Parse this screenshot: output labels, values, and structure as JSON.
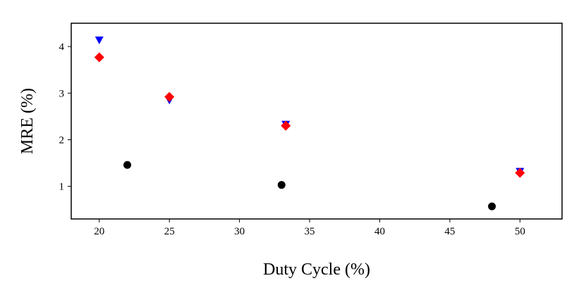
{
  "chart_data": {
    "type": "scatter",
    "x_label": "Duty Cycle (%)",
    "y_label": "MRE (%)",
    "xlim": [
      18,
      53
    ],
    "ylim": [
      0.3,
      4.5
    ],
    "xticks": [
      20,
      25,
      30,
      35,
      40,
      45,
      50
    ],
    "yticks": [
      1,
      2,
      3,
      4
    ],
    "grid": false,
    "series": [
      {
        "color": "#000000",
        "marker": "o",
        "x": [
          22,
          33,
          48
        ],
        "values": [
          1.46,
          1.03,
          0.57
        ]
      },
      {
        "color": "#0000ff",
        "marker": "v",
        "x": [
          20,
          25,
          33.3,
          50
        ],
        "values": [
          4.14,
          2.85,
          2.33,
          1.32
        ]
      },
      {
        "color": "#ff0000",
        "marker": "D",
        "x": [
          20,
          25,
          33.3,
          50
        ],
        "values": [
          3.77,
          2.92,
          2.3,
          1.29
        ]
      }
    ]
  }
}
